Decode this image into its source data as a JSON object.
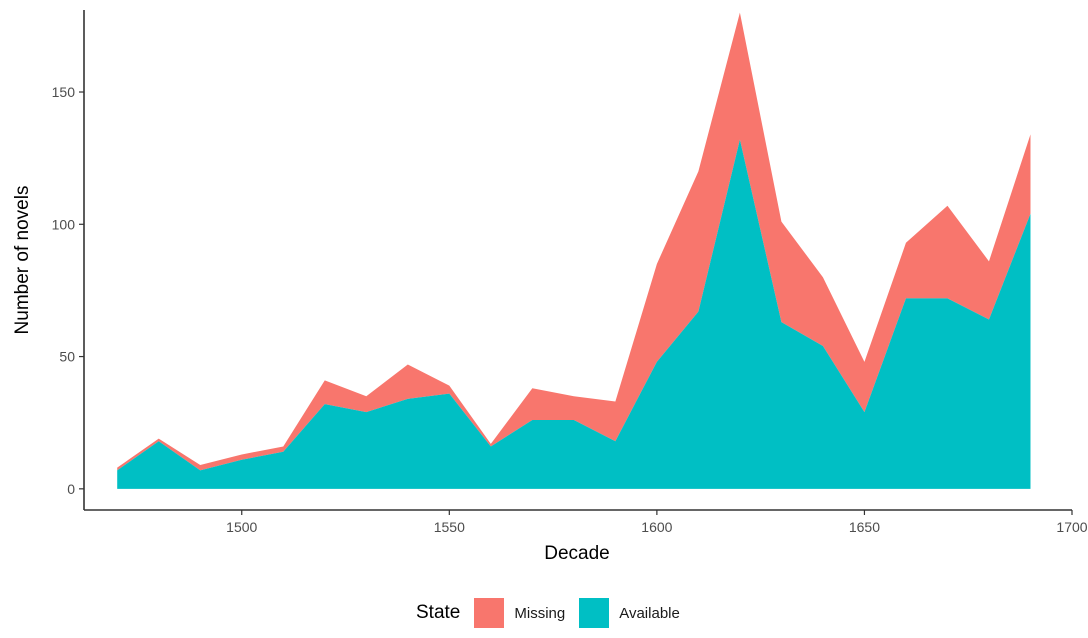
{
  "chart_data": {
    "type": "area",
    "stacked": true,
    "xlabel": "Decade",
    "ylabel": "Number of novels",
    "xlim": [
      1462,
      1700
    ],
    "ylim": [
      -8,
      181
    ],
    "x_ticks": [
      1500,
      1550,
      1600,
      1650,
      1700
    ],
    "y_ticks": [
      0,
      50,
      100,
      150
    ],
    "x_tick_labels": [
      "1500",
      "1550",
      "1600",
      "1650",
      "1700"
    ],
    "y_tick_labels": [
      "0",
      "50",
      "100",
      "150"
    ],
    "x": [
      1470,
      1480,
      1490,
      1500,
      1510,
      1520,
      1530,
      1540,
      1550,
      1560,
      1570,
      1580,
      1590,
      1600,
      1610,
      1620,
      1630,
      1640,
      1650,
      1660,
      1670,
      1680,
      1690
    ],
    "series": [
      {
        "name": "Available",
        "color": "#00BFC4",
        "values": [
          7,
          18,
          7,
          11,
          14,
          32,
          29,
          34,
          36,
          16,
          26,
          26,
          18,
          48,
          67,
          132,
          63,
          54,
          29,
          72,
          72,
          64,
          104
        ]
      },
      {
        "name": "Missing",
        "color": "#F8766D",
        "values": [
          1,
          1,
          2,
          2,
          2,
          9,
          6,
          13,
          3,
          1,
          12,
          9,
          15,
          37,
          53,
          48,
          38,
          26,
          19,
          21,
          35,
          22,
          30
        ]
      }
    ],
    "grid": false,
    "legend_position": "bottom",
    "legend_title": "State",
    "legend_order": [
      "Missing",
      "Available"
    ]
  }
}
